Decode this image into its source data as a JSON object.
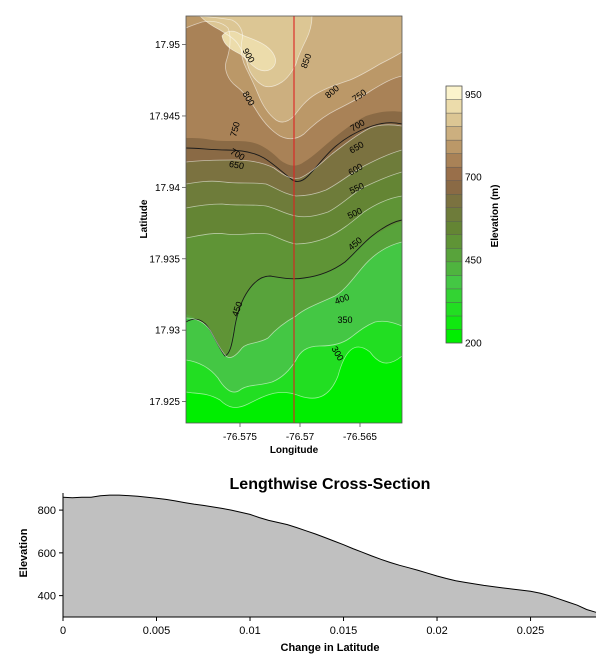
{
  "chart_data": [
    {
      "type": "contour",
      "xlabel": "Longitude",
      "ylabel": "Latitude",
      "xlim": [
        -76.5795,
        -76.5615
      ],
      "ylim": [
        17.9235,
        17.952
      ],
      "x_ticks": [
        "-76.575",
        "-76.57",
        "-76.565"
      ],
      "x_tick_values": [
        -76.575,
        -76.57,
        -76.565
      ],
      "y_ticks": [
        "17.95",
        "17.945",
        "17.94",
        "17.935",
        "17.93",
        "17.925"
      ],
      "y_tick_values": [
        17.95,
        17.945,
        17.94,
        17.935,
        17.93,
        17.925
      ],
      "contour_labels": [
        "900",
        "850",
        "800",
        "800",
        "750",
        "750",
        "700",
        "700",
        "650",
        "650",
        "600",
        "550",
        "500",
        "450",
        "450",
        "400",
        "350",
        "300"
      ],
      "cross_section_longitude": -76.5705,
      "colorbar": {
        "label": "Elevation (m)",
        "ticks": [
          "950",
          "700",
          "450",
          "200"
        ],
        "levels": [
          200,
          225,
          250,
          275,
          300,
          350,
          400,
          450,
          500,
          550,
          600,
          650,
          700,
          750,
          800,
          850,
          900,
          950,
          975
        ],
        "colors": [
          "#00ee00",
          "#10e810",
          "#22de22",
          "#33d333",
          "#44c744",
          "#4fb43f",
          "#58a33b",
          "#5f9436",
          "#648534",
          "#6e7c3a",
          "#7b7240",
          "#8a6a45",
          "#996f4a",
          "#a98257",
          "#bb9868",
          "#ccaf7f",
          "#dcc694",
          "#ecdcab",
          "#fbf3cc"
        ]
      }
    },
    {
      "type": "area",
      "title": "Lengthwise Cross-Section",
      "xlabel": "Change in Latitude",
      "ylabel": "Elevation",
      "xlim": [
        0,
        0.0285
      ],
      "ylim": [
        300,
        880
      ],
      "x_ticks": [
        "0",
        "0.005",
        "0.01",
        "0.015",
        "0.02",
        "0.025"
      ],
      "x_tick_values": [
        0,
        0.005,
        0.01,
        0.015,
        0.02,
        0.025
      ],
      "y_ticks": [
        "800",
        "600",
        "400"
      ],
      "y_tick_values": [
        800,
        600,
        400
      ],
      "fill_color": "#c0c0c0",
      "series": [
        {
          "x": [
            0,
            0.0005,
            0.001,
            0.0015,
            0.002,
            0.0025,
            0.003,
            0.0035,
            0.004,
            0.0045,
            0.005,
            0.0055,
            0.006,
            0.0065,
            0.007,
            0.0075,
            0.008,
            0.0085,
            0.009,
            0.0095,
            0.01,
            0.0105,
            0.011,
            0.0115,
            0.012,
            0.0125,
            0.013,
            0.0135,
            0.014,
            0.0145,
            0.015,
            0.0155,
            0.016,
            0.0165,
            0.017,
            0.0175,
            0.018,
            0.0185,
            0.019,
            0.0195,
            0.02,
            0.0205,
            0.021,
            0.0215,
            0.022,
            0.0225,
            0.023,
            0.0235,
            0.024,
            0.0245,
            0.025,
            0.0255,
            0.026,
            0.0265,
            0.027,
            0.0275,
            0.028,
            0.0285
          ],
          "values": [
            860,
            858,
            860,
            860,
            867,
            870,
            870,
            868,
            865,
            860,
            855,
            850,
            843,
            835,
            828,
            822,
            815,
            808,
            800,
            790,
            780,
            765,
            752,
            742,
            732,
            718,
            703,
            688,
            672,
            655,
            638,
            620,
            603,
            586,
            570,
            555,
            542,
            530,
            518,
            505,
            492,
            480,
            470,
            462,
            455,
            448,
            442,
            436,
            431,
            426,
            420,
            412,
            400,
            385,
            370,
            355,
            335,
            322
          ]
        }
      ]
    }
  ]
}
